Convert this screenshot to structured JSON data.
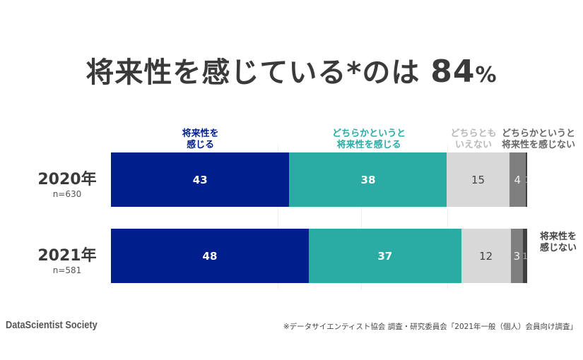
{
  "chart_data": {
    "type": "bar",
    "orientation": "horizontal",
    "stacked": true,
    "title": "将来性を感じている*のは",
    "headline_value": "84",
    "headline_unit": "%",
    "categories": [
      {
        "year": "2020年",
        "n": "n=630"
      },
      {
        "year": "2021年",
        "n": "n=581"
      }
    ],
    "series": [
      {
        "name": "将来性を感じる",
        "values": [
          43,
          48
        ],
        "color": "#001e8c",
        "label_color": "#ffffff",
        "name_color": "#001e8c"
      },
      {
        "name": "どちらかというと将来性を感じる",
        "values": [
          38,
          37
        ],
        "color": "#2aaba4",
        "label_color": "#ffffff",
        "name_color": "#2aaba4"
      },
      {
        "name": "どちらともいえない",
        "values": [
          15,
          12
        ],
        "color": "#d8d8d8",
        "label_color": "#444444",
        "name_color": "#b8b8b8"
      },
      {
        "name": "どちらかというと将来性を感じない",
        "values": [
          4,
          3
        ],
        "color": "#7f7f7f",
        "label_color": "#eeeeee",
        "name_color": "#666666"
      },
      {
        "name": "将来性を感じない",
        "values": [
          0,
          1
        ],
        "color": "#404040",
        "label_color": "#aaaaaa",
        "name_color": "#444444"
      }
    ],
    "legend_lines": [
      [
        "将来性を",
        "感じる"
      ],
      [
        "どちらかというと",
        "将来性を感じる"
      ],
      [
        "どちらとも",
        "いえない"
      ],
      [
        "どちらかというと",
        "将来性を感じない"
      ],
      [
        "将来性を",
        "感じない"
      ]
    ]
  },
  "footer": {
    "brand": "DataScientist Society",
    "source": "※データサイエンティスト協会 調査・研究委員会「2021年一般（個人）会員向け調査」"
  }
}
